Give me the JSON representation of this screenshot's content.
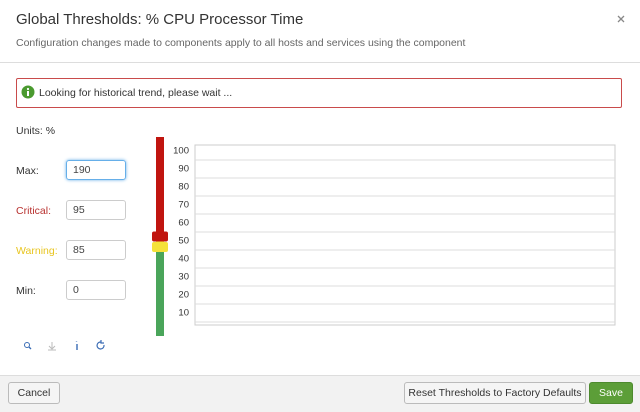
{
  "dialog": {
    "title": "Global Thresholds: % CPU Processor Time",
    "subtitle": "Configuration changes made to components apply to all hosts and services using the component",
    "message": "Looking for historical trend, please wait ...",
    "units_label": "Units: %",
    "fields": [
      {
        "label": "Max:",
        "value": 190
      },
      {
        "label": "Critical:",
        "value": 95
      },
      {
        "label": "Warning:",
        "value": 85
      },
      {
        "label": "Min:",
        "value": 0
      }
    ],
    "trend_ticks": [
      100,
      90,
      80,
      70,
      60,
      50,
      40,
      30,
      20,
      10
    ],
    "buttons": {
      "cancel": "Cancel",
      "reset": "Reset Thresholds to Factory Defaults",
      "save": "Save"
    }
  }
}
